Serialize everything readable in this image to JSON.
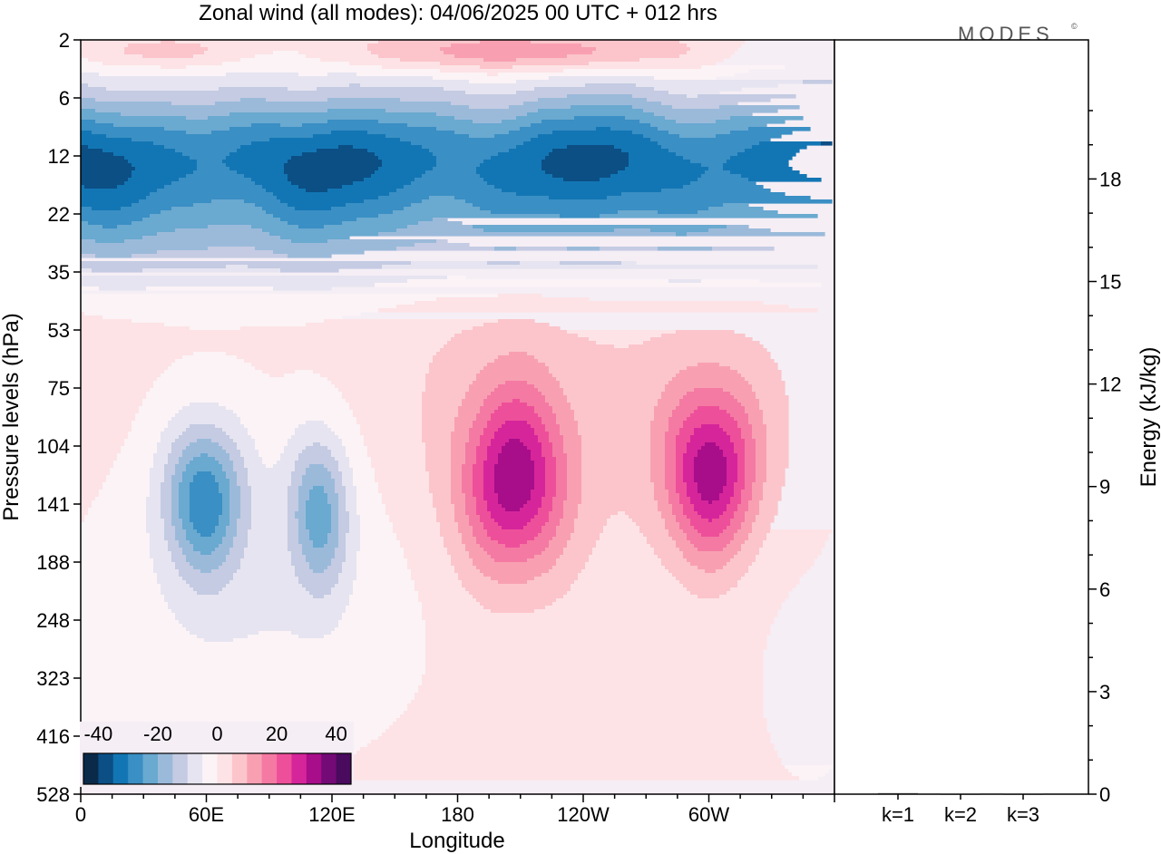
{
  "title": "Zonal wind (all modes):  04/06/2025  00 UTC  + 012 hrs",
  "logo": {
    "text": "MODES",
    "mark": "©"
  },
  "colors": {
    "background": "#ffffff",
    "axis": "#000000",
    "modes_logo": "#555555",
    "palette": [
      "#0b2a4a",
      "#0b4f85",
      "#1376b4",
      "#3a8fc4",
      "#6aa9d0",
      "#9bbada",
      "#c4cbe2",
      "#e6e4f0",
      "#fbf3f6",
      "#fde3e6",
      "#fbc5cb",
      "#f8a0b2",
      "#f47aa3",
      "#ee4f9a",
      "#d6259a",
      "#a80d8a",
      "#740a76",
      "#4a0a5e"
    ],
    "field_background": "#f5eef5"
  },
  "chart_data": [
    {
      "type": "heatmap",
      "title": "Zonal wind (all modes):  04/06/2025  00 UTC  + 012 hrs",
      "xlabel": "Longitude",
      "ylabel": "Pressure levels (hPa)",
      "x_ticks": [
        "0",
        "60E",
        "120E",
        "180",
        "120W",
        "60W"
      ],
      "x_tick_degrees": [
        0,
        60,
        120,
        180,
        240,
        300
      ],
      "xlim_degrees": [
        0,
        360
      ],
      "y_ticks": [
        "2",
        "6",
        "12",
        "22",
        "35",
        "53",
        "75",
        "104",
        "141",
        "188",
        "248",
        "323",
        "416",
        "528"
      ],
      "y_scale": "model levels (non-uniform)",
      "colorbar": {
        "tick_labels": [
          "-40",
          "-20",
          "0",
          "20",
          "40"
        ],
        "range": [
          -45,
          45
        ],
        "n_bins": 18,
        "placement": "bottom-left"
      },
      "features": [
        {
          "label": "easterly band",
          "lon_range": [
            0,
            360
          ],
          "levels": [
            "6",
            "35"
          ],
          "min_value": -40
        },
        {
          "label": "westerly upper band",
          "lon_range": [
            100,
            320
          ],
          "levels": [
            "2",
            "6"
          ],
          "max_value": 15
        },
        {
          "label": "easterly jet 1",
          "center_lon": 58,
          "center_level": "141",
          "min_value": -25
        },
        {
          "label": "easterly jet 2",
          "center_lon": 113,
          "center_level": "141",
          "min_value": -20
        },
        {
          "label": "westerly jet 1",
          "center_lon": 206,
          "center_level": "141",
          "max_value": 27
        },
        {
          "label": "westerly jet 2",
          "center_lon": 300,
          "center_level": "141",
          "max_value": 27
        }
      ]
    },
    {
      "type": "bar",
      "ylabel": "Energy (kJ/kg)",
      "categories": [
        "k=1",
        "k=2",
        "k=3"
      ],
      "values": [
        0.03,
        0.01,
        0.01
      ],
      "ylim": [
        0,
        20
      ],
      "y_ticks": [
        "0",
        "3",
        "6",
        "9",
        "12",
        "15",
        "18"
      ]
    }
  ]
}
